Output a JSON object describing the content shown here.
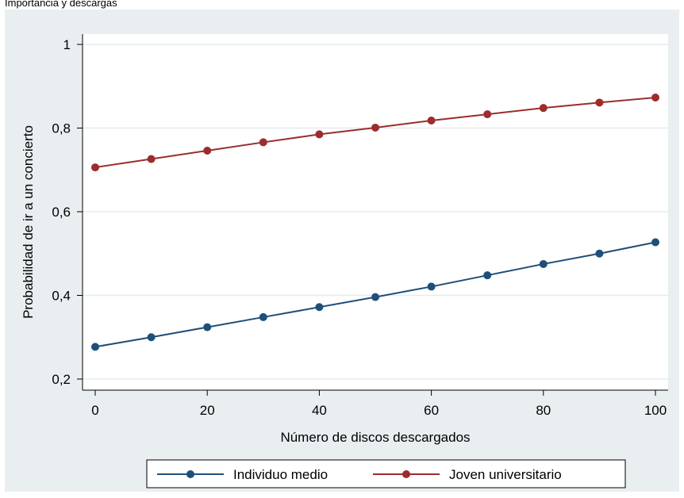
{
  "top_caption": "Importancia y descargas",
  "chart_data": {
    "type": "line",
    "title": "",
    "xlabel": "Número de discos descargados",
    "ylabel": "Probabilidad de ir a un concierto",
    "xlim": [
      0,
      100
    ],
    "ylim": [
      0.2,
      1.0
    ],
    "x_ticks": [
      0,
      20,
      40,
      60,
      80,
      100
    ],
    "x_tick_labels": [
      "0",
      "20",
      "40",
      "60",
      "80",
      "100"
    ],
    "y_ticks": [
      0.2,
      0.4,
      0.6,
      0.8,
      1.0
    ],
    "y_tick_labels": [
      "0,2",
      "0,4",
      "0,6",
      "0,8",
      "1"
    ],
    "grid": true,
    "legend_position": "bottom",
    "x": [
      0,
      10,
      20,
      30,
      40,
      50,
      60,
      70,
      80,
      90,
      100
    ],
    "series": [
      {
        "name": "Individuo medio",
        "color": "#1f4e79",
        "values": [
          0.277,
          0.3,
          0.324,
          0.348,
          0.372,
          0.396,
          0.421,
          0.448,
          0.475,
          0.5,
          0.527
        ]
      },
      {
        "name": "Joven universitario",
        "color": "#9b2d2d",
        "values": [
          0.706,
          0.726,
          0.746,
          0.766,
          0.785,
          0.801,
          0.818,
          0.833,
          0.848,
          0.861,
          0.873
        ]
      }
    ]
  }
}
